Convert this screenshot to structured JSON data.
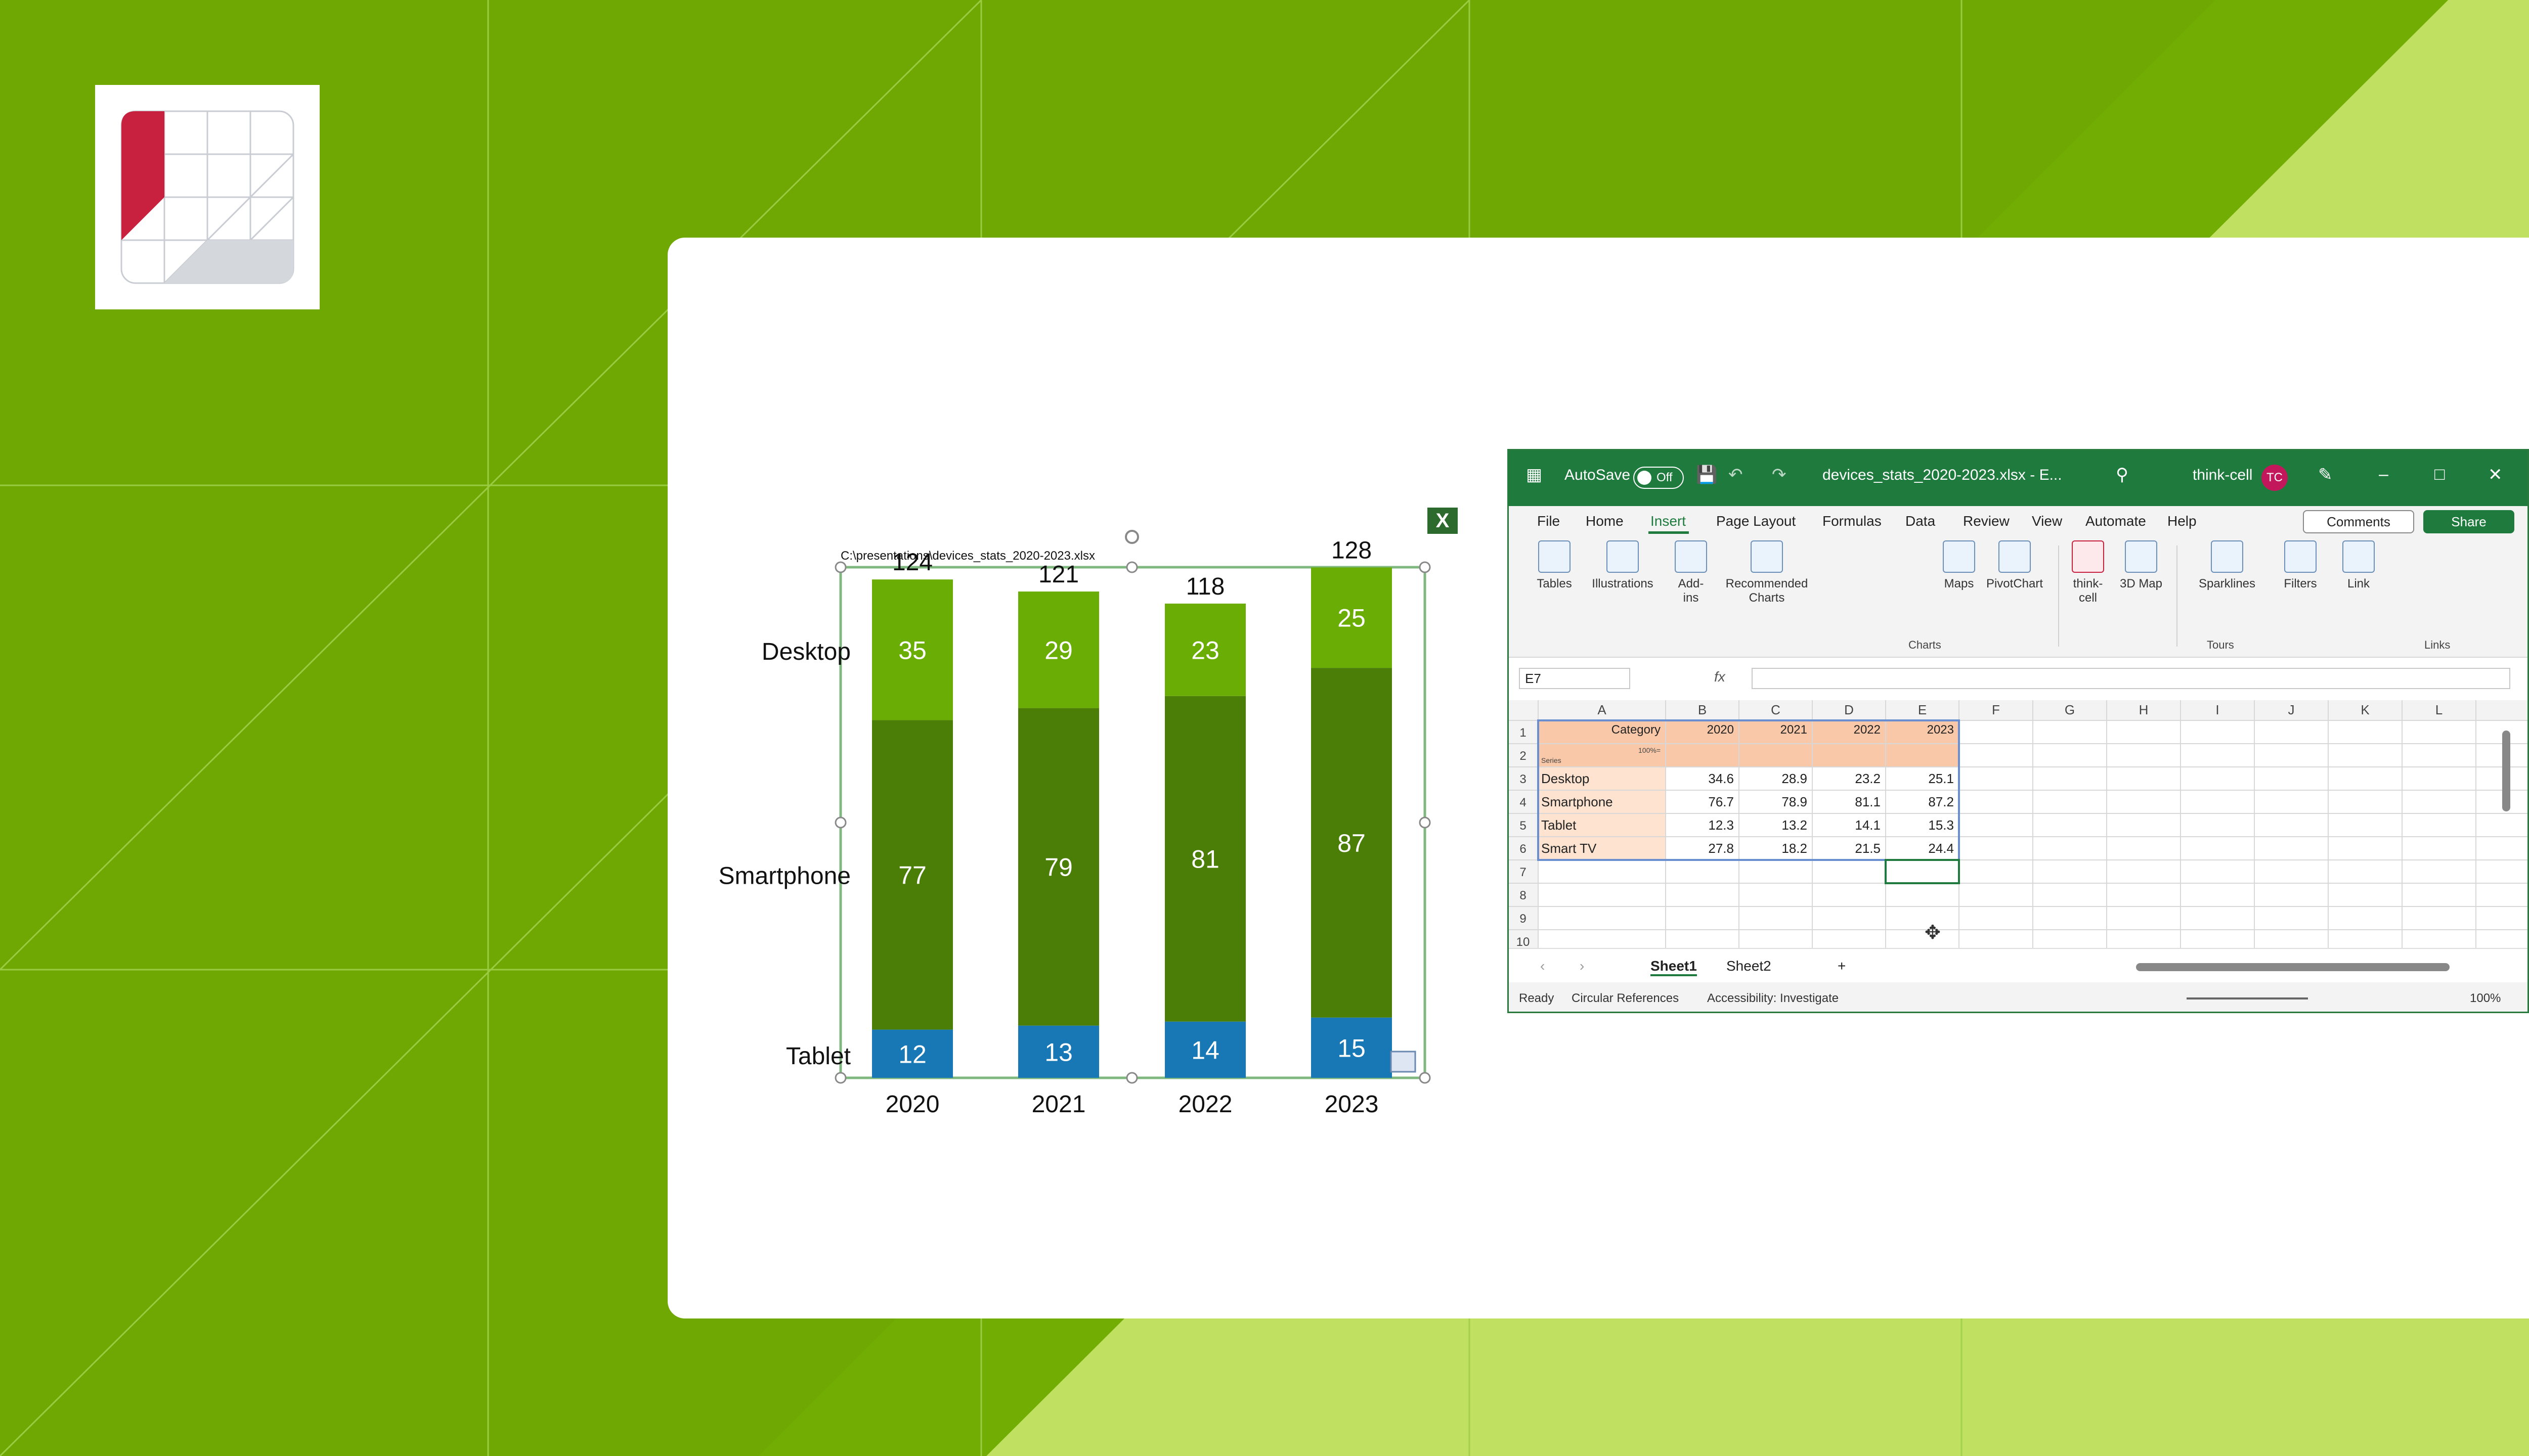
{
  "colors": {
    "background": "#6fa802",
    "desktop_segment": "#6aad05",
    "smartphone_segment": "#4a7e06",
    "tablet_segment": "#1877b5",
    "excel_green": "#1f7a3e",
    "table_highlight": "#f9c8a8"
  },
  "chart_data": {
    "type": "bar",
    "stacked": true,
    "categories": [
      "2020",
      "2021",
      "2022",
      "2023"
    ],
    "series": [
      {
        "name": "Tablet",
        "values": [
          12,
          13,
          14,
          15
        ]
      },
      {
        "name": "Smartphone",
        "values": [
          77,
          79,
          81,
          87
        ]
      },
      {
        "name": "Desktop",
        "values": [
          35,
          29,
          23,
          25
        ]
      }
    ],
    "totals": [
      "124",
      "121",
      "118",
      "128"
    ],
    "series_labels_position": "left",
    "grid": false
  },
  "chart_path_label": "C:\\presentations\\devices_stats_2020-2023.xlsx",
  "excel_badge": "X",
  "excel": {
    "titlebar": {
      "autosave": "AutoSave",
      "toggle_state": "Off",
      "filename": "devices_stats_2020-2023.xlsx  -  E...",
      "account": "think-cell",
      "avatar": "TC"
    },
    "menu": [
      "File",
      "Home",
      "Insert",
      "Page Layout",
      "Formulas",
      "Data",
      "Review",
      "View",
      "Automate",
      "Help"
    ],
    "active_menu": "Insert",
    "comments": "Comments",
    "share": "Share",
    "ribbon": {
      "tables": "Tables",
      "illustrations": "Illustrations",
      "addins": "Add-ins",
      "recommended_charts": "Recommended Charts",
      "maps": "Maps",
      "pivotchart": "PivotChart",
      "thinkcell": "think-cell",
      "map3d": "3D Map",
      "sparklines": "Sparklines",
      "filters": "Filters",
      "link": "Link",
      "group_charts": "Charts",
      "group_tours": "Tours",
      "group_links": "Links"
    },
    "name_box": "E7",
    "fx": "fx",
    "columns": [
      "A",
      "B",
      "C",
      "D",
      "E",
      "F",
      "G",
      "H",
      "I",
      "J",
      "K",
      "L"
    ],
    "rows": [
      "1",
      "2",
      "3",
      "4",
      "5",
      "6",
      "7",
      "8",
      "9",
      "10"
    ],
    "header_row": [
      "Category",
      "2020",
      "2021",
      "2022",
      "2023"
    ],
    "row2_labels": [
      "Series",
      "100%="
    ],
    "table": [
      [
        "Desktop",
        "34.6",
        "28.9",
        "23.2",
        "25.1"
      ],
      [
        "Smartphone",
        "76.7",
        "78.9",
        "81.1",
        "87.2"
      ],
      [
        "Tablet",
        "12.3",
        "13.2",
        "14.1",
        "15.3"
      ],
      [
        "Smart TV",
        "27.8",
        "18.2",
        "21.5",
        "24.4"
      ]
    ],
    "sheets": [
      "Sheet1",
      "Sheet2"
    ],
    "add_sheet": "+",
    "status": {
      "ready": "Ready",
      "circular": "Circular References",
      "accessibility": "Accessibility: Investigate",
      "zoom": "100%"
    }
  }
}
